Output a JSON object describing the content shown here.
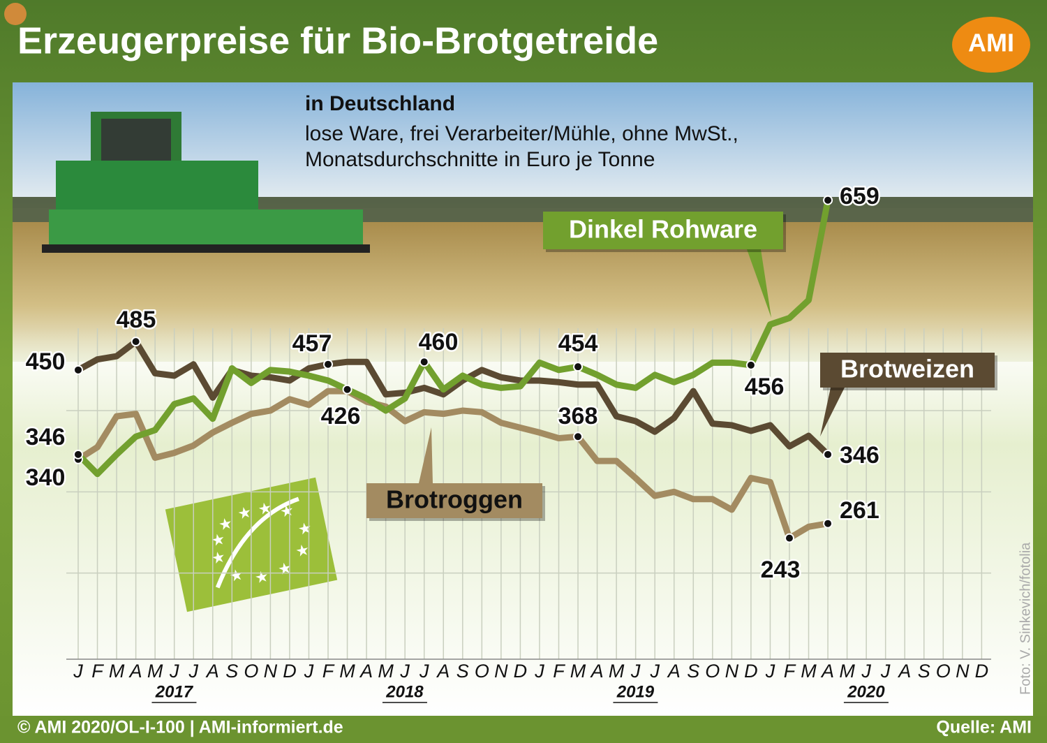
{
  "chart_data": {
    "type": "line",
    "title": "Erzeugerpreise für Bio-Brotgetreide",
    "logo": "AMI",
    "subtitle": "in Deutschland",
    "notes": [
      "lose Ware, frei Verarbeiter/Mühle, ohne MwSt.,",
      "Monatsdurchschnitte in Euro je Tonne"
    ],
    "categories": [
      "J",
      "F",
      "M",
      "A",
      "M",
      "J",
      "J",
      "A",
      "S",
      "O",
      "N",
      "D",
      "J",
      "F",
      "M",
      "A",
      "M",
      "J",
      "J",
      "A",
      "S",
      "O",
      "N",
      "D",
      "J",
      "F",
      "M",
      "A",
      "M",
      "J",
      "J",
      "A",
      "S",
      "O",
      "N",
      "D",
      "J",
      "F",
      "M",
      "A",
      "M",
      "J",
      "J",
      "A",
      "S",
      "O",
      "N",
      "D"
    ],
    "years": [
      "2017",
      "2018",
      "2019",
      "2020"
    ],
    "ylim": [
      100,
      700
    ],
    "yticks": [
      200,
      300,
      400
    ],
    "ytick_labels": false,
    "grid": true,
    "series": [
      {
        "name": "Brotweizen",
        "color": "#5b4a32",
        "label_color": "#ffffff",
        "values": [
          450,
          463,
          467,
          485,
          446,
          443,
          457,
          416,
          450,
          443,
          441,
          437,
          452,
          457,
          460,
          460,
          420,
          422,
          428,
          420,
          437,
          450,
          441,
          437,
          437,
          435,
          432,
          432,
          393,
          387,
          374,
          391,
          424,
          384,
          382,
          375,
          382,
          356,
          369,
          346,
          null,
          null,
          null,
          null,
          null,
          null,
          null,
          null
        ],
        "value_labels": [
          "450",
          null,
          null,
          "485",
          null,
          null,
          null,
          null,
          null,
          null,
          null,
          null,
          null,
          "457",
          null,
          null,
          null,
          null,
          null,
          null,
          null,
          null,
          null,
          null,
          null,
          null,
          null,
          null,
          null,
          null,
          null,
          null,
          null,
          null,
          null,
          null,
          null,
          null,
          null,
          "346",
          null,
          null,
          null,
          null,
          null,
          null,
          null,
          null
        ]
      },
      {
        "name": "Brotroggen",
        "color": "#a38b61",
        "label_color": "#111111",
        "values": [
          340,
          355,
          393,
          396,
          342,
          348,
          357,
          373,
          385,
          396,
          400,
          414,
          407,
          424,
          424,
          411,
          405,
          387,
          398,
          396,
          400,
          398,
          385,
          379,
          373,
          366,
          368,
          338,
          338,
          317,
          295,
          300,
          291,
          291,
          278,
          317,
          312,
          243,
          257,
          261,
          null,
          null,
          null,
          null,
          null,
          null,
          null,
          null
        ],
        "value_labels": [
          "340",
          null,
          null,
          null,
          null,
          null,
          null,
          null,
          null,
          null,
          null,
          null,
          null,
          null,
          null,
          null,
          null,
          null,
          null,
          null,
          null,
          null,
          null,
          null,
          null,
          null,
          "368",
          null,
          null,
          null,
          null,
          null,
          null,
          null,
          null,
          null,
          null,
          "243",
          null,
          "261",
          null,
          null,
          null,
          null,
          null,
          null,
          null,
          null
        ]
      },
      {
        "name": "Dinkel Rohware",
        "color": "#72a02e",
        "label_color": "#ffffff",
        "values": [
          346,
          322,
          346,
          368,
          376,
          408,
          415,
          390,
          452,
          434,
          450,
          448,
          443,
          437,
          426,
          415,
          400,
          415,
          460,
          426,
          443,
          432,
          428,
          430,
          459,
          450,
          454,
          444,
          432,
          428,
          444,
          435,
          444,
          459,
          459,
          456,
          506,
          514,
          536,
          659,
          null,
          null,
          null,
          null,
          null,
          null,
          null,
          null
        ],
        "value_labels": [
          "346",
          null,
          null,
          null,
          null,
          null,
          null,
          null,
          null,
          null,
          null,
          null,
          null,
          null,
          "426",
          null,
          null,
          null,
          "460",
          null,
          null,
          null,
          null,
          null,
          null,
          null,
          "454",
          null,
          null,
          null,
          null,
          null,
          null,
          null,
          null,
          "456",
          null,
          null,
          null,
          "659",
          null,
          null,
          null,
          null,
          null,
          null,
          null,
          null
        ]
      }
    ],
    "footer_left": "© AMI 2020/OL-I-100 | AMI-informiert.de",
    "footer_right": "Quelle: AMI",
    "photo_credit": "Foto: V. Sinkevich/fotolia"
  }
}
